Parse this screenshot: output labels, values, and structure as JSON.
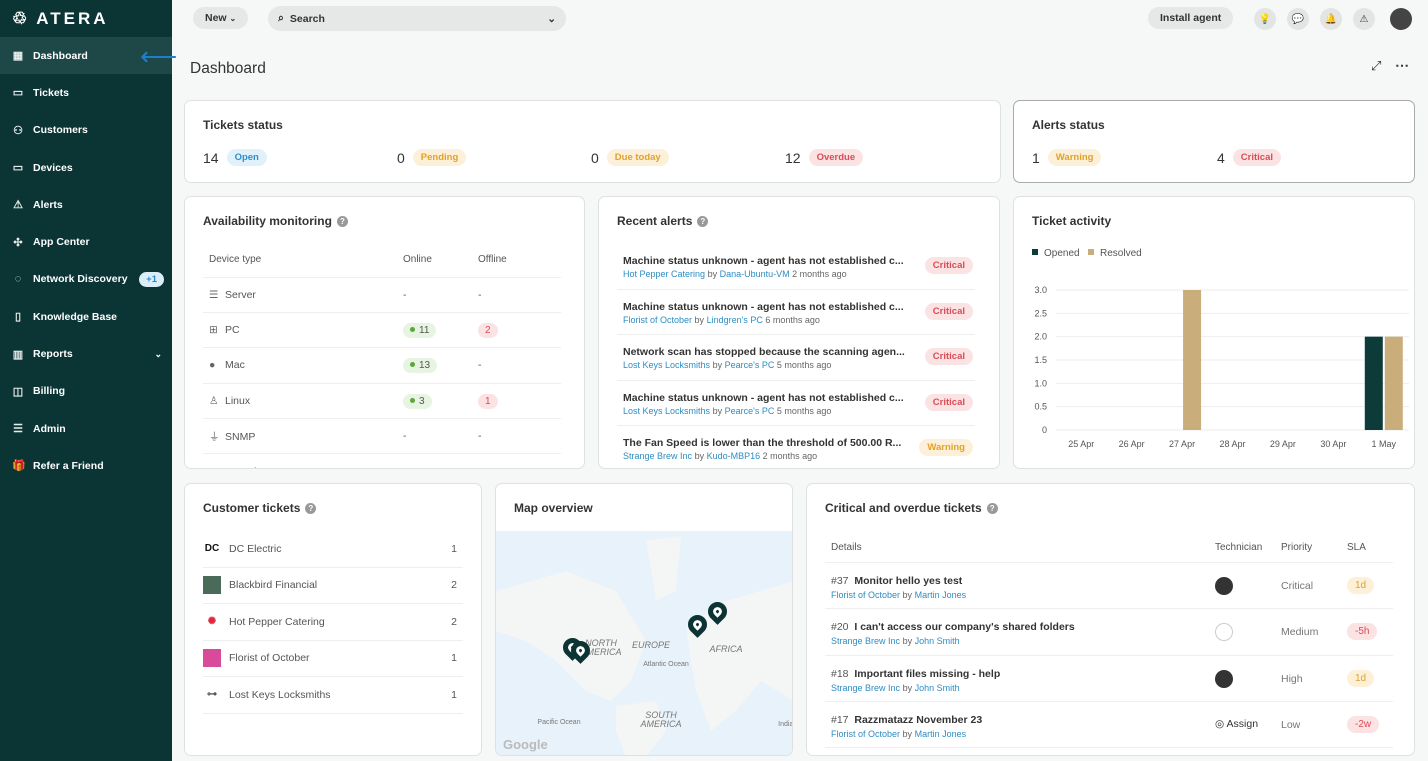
{
  "brand": "ATERA",
  "sidebar": {
    "items": [
      {
        "label": "Dashboard",
        "icon": "dashboard-icon",
        "glyph": "▦"
      },
      {
        "label": "Tickets",
        "icon": "ticket-icon",
        "glyph": "▭"
      },
      {
        "label": "Customers",
        "icon": "customers-icon",
        "glyph": "⚇"
      },
      {
        "label": "Devices",
        "icon": "monitor-icon",
        "glyph": "▭"
      },
      {
        "label": "Alerts",
        "icon": "alert-icon",
        "glyph": "⚠"
      },
      {
        "label": "App Center",
        "icon": "puzzle-icon",
        "glyph": "✣"
      },
      {
        "label": "Network Discovery",
        "icon": "network-icon",
        "glyph": "◌",
        "badge": "+1"
      },
      {
        "label": "Knowledge Base",
        "icon": "book-icon",
        "glyph": "▯"
      },
      {
        "label": "Reports",
        "icon": "reports-icon",
        "glyph": "▥",
        "chevron": "⌄"
      },
      {
        "label": "Billing",
        "icon": "wallet-icon",
        "glyph": "◫"
      },
      {
        "label": "Admin",
        "icon": "sliders-icon",
        "glyph": "☰"
      },
      {
        "label": "Refer a Friend",
        "icon": "gift-icon",
        "glyph": "🎁"
      }
    ]
  },
  "topbar": {
    "new_label": "New",
    "new_chevron": "⌄",
    "search_placeholder": "Search",
    "search_chevron": "⌄",
    "install_label": "Install agent"
  },
  "page": {
    "title": "Dashboard",
    "expand": "⤢",
    "more": "⋯"
  },
  "tickets_status": {
    "title": "Tickets status",
    "items": [
      {
        "count": "14",
        "label": "Open"
      },
      {
        "count": "0",
        "label": "Pending"
      },
      {
        "count": "0",
        "label": "Due today"
      },
      {
        "count": "12",
        "label": "Overdue"
      }
    ]
  },
  "alerts_status": {
    "title": "Alerts status",
    "items": [
      {
        "count": "1",
        "label": "Warning"
      },
      {
        "count": "4",
        "label": "Critical"
      }
    ]
  },
  "availability": {
    "title": "Availability monitoring",
    "headers": [
      "Device type",
      "Online",
      "Offline"
    ],
    "rows": [
      {
        "type": "Server",
        "icon": "server-icon",
        "glyph": "☰",
        "online": "-",
        "offline": "-"
      },
      {
        "type": "PC",
        "icon": "windows-icon",
        "glyph": "⊞",
        "online": "11",
        "offline": "2"
      },
      {
        "type": "Mac",
        "icon": "apple-icon",
        "glyph": "●",
        "online": "13",
        "offline": "-"
      },
      {
        "type": "Linux",
        "icon": "linux-icon",
        "glyph": "♙",
        "online": "3",
        "offline": "1"
      },
      {
        "type": "SNMP",
        "icon": "plug-icon",
        "glyph": "⏚",
        "online": "-",
        "offline": "-"
      },
      {
        "type": "Generic",
        "icon": "generic-icon",
        "glyph": "▦",
        "online": "",
        "offline": ""
      }
    ]
  },
  "recent_alerts": {
    "title": "Recent alerts",
    "items": [
      {
        "title": "Machine status unknown - agent has not established c...",
        "customer": "Hot Pepper Catering",
        "by": "by",
        "device": "Dana-Ubuntu-VM",
        "time": "2 months ago",
        "severity": "Critical"
      },
      {
        "title": "Machine status unknown - agent has not established c...",
        "customer": "Florist of October",
        "by": "by",
        "device": "Lindgren's PC",
        "time": "6 months ago",
        "severity": "Critical"
      },
      {
        "title": "Network scan has stopped because the scanning agen...",
        "customer": "Lost Keys Locksmiths",
        "by": "by",
        "device": "Pearce's PC",
        "time": "5 months ago",
        "severity": "Critical"
      },
      {
        "title": "Machine status unknown - agent has not established c...",
        "customer": "Lost Keys Locksmiths",
        "by": "by",
        "device": "Pearce's PC",
        "time": "5 months ago",
        "severity": "Critical"
      },
      {
        "title": "The Fan Speed is lower than the threshold of 500.00 R...",
        "customer": "Strange Brew Inc",
        "by": "by",
        "device": "Kudo-MBP16",
        "time": "2 months ago",
        "severity": "Warning"
      }
    ]
  },
  "chart_data": {
    "type": "bar",
    "title": "Ticket activity",
    "categories": [
      "25 Apr",
      "26 Apr",
      "27 Apr",
      "28 Apr",
      "29 Apr",
      "30 Apr",
      "1 May"
    ],
    "series": [
      {
        "name": "Opened",
        "color": "#0d3b3a",
        "values": [
          0,
          0,
          0,
          0,
          0,
          0,
          2
        ]
      },
      {
        "name": "Resolved",
        "color": "#c9ad7b",
        "values": [
          0,
          0,
          3,
          0,
          0,
          0,
          2
        ]
      }
    ],
    "yticks": [
      "3.0",
      "2.5",
      "2.0",
      "1.5",
      "1.0",
      "0.5",
      "0"
    ],
    "ylim": [
      0,
      3
    ],
    "legend": "top-left",
    "grid": true
  },
  "customer_tickets": {
    "title": "Customer tickets",
    "items": [
      {
        "name": "DC Electric",
        "count": "1",
        "logo": "DC"
      },
      {
        "name": "Blackbird Financial",
        "count": "2",
        "logo": ""
      },
      {
        "name": "Hot Pepper Catering",
        "count": "2",
        "logo": "✺"
      },
      {
        "name": "Florist of October",
        "count": "1",
        "logo": ""
      },
      {
        "name": "Lost Keys Locksmiths",
        "count": "1",
        "logo": "⊶"
      }
    ]
  },
  "map": {
    "title": "Map overview",
    "labels": [
      "NORTH AMERICA",
      "EUROPE",
      "AFRICA",
      "SOUTH AMERICA",
      "Atlantic Ocean",
      "Pacific Ocean",
      "Indian Ocean"
    ],
    "attribution": "Google"
  },
  "critical_tickets": {
    "title": "Critical and overdue tickets",
    "headers": [
      "Details",
      "Technician",
      "Priority",
      "SLA"
    ],
    "rows": [
      {
        "id": "#37",
        "title": "Monitor hello yes test",
        "customer": "Florist of October",
        "by": "by",
        "user": "Martin Jones",
        "priority": "Critical",
        "sla": "1d",
        "sla_type": "yel",
        "tech": "photo"
      },
      {
        "id": "#20",
        "title": "I can't access our company's shared folders",
        "customer": "Strange Brew Inc",
        "by": "by",
        "user": "John Smith",
        "priority": "Medium",
        "sla": "-5h",
        "sla_type": "red",
        "tech": "sketch"
      },
      {
        "id": "#18",
        "title": "Important files missing - help",
        "customer": "Strange Brew Inc",
        "by": "by",
        "user": "John Smith",
        "priority": "High",
        "sla": "1d",
        "sla_type": "yel",
        "tech": "photo"
      },
      {
        "id": "#17",
        "title": "Razzmatazz November 23",
        "customer": "Florist of October",
        "by": "by",
        "user": "Martin Jones",
        "priority": "Low",
        "sla": "-2w",
        "sla_type": "red",
        "tech": "assign",
        "assign_label": "Assign"
      }
    ]
  }
}
